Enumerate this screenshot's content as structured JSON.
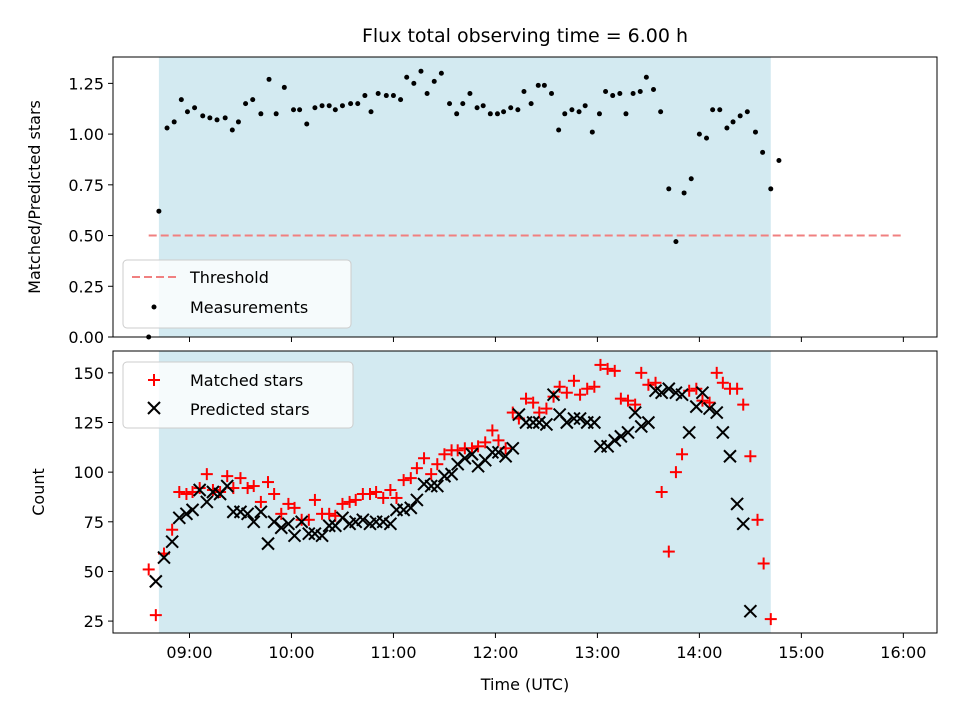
{
  "chart_data": {
    "type": "scatter",
    "title": "Flux total observing time = 6.00 h",
    "xlabel": "Time (UTC)",
    "x_tick_labels": [
      "09:00",
      "10:00",
      "11:00",
      "12:00",
      "13:00",
      "14:00",
      "15:00",
      "16:00"
    ],
    "x_ticks_hours": [
      9,
      10,
      11,
      12,
      13,
      14,
      15,
      16
    ],
    "xlim_hours": [
      8.25,
      16.33
    ],
    "observing_window_hours": [
      8.7,
      14.7
    ],
    "colors": {
      "window": "#d3eaf1",
      "threshold": "#f08080",
      "measurements": "#000000",
      "matched": "#ff0000",
      "predicted": "#000000"
    },
    "top_panel": {
      "ylabel": "Matched/Predicted stars",
      "ylim": [
        0,
        1.38
      ],
      "y_ticks": [
        0.0,
        0.25,
        0.5,
        0.75,
        1.0,
        1.25
      ],
      "y_tick_labels": [
        "0.00",
        "0.25",
        "0.50",
        "0.75",
        "1.00",
        "1.25"
      ],
      "legend": {
        "position": "lower-left",
        "entries": [
          "Threshold",
          "Measurements"
        ]
      },
      "threshold": {
        "name": "Threshold",
        "value": 0.5,
        "x_range": [
          8.6,
          16.0
        ]
      },
      "measurements": {
        "name": "Measurements",
        "points": [
          [
            8.6,
            0.0
          ],
          [
            8.7,
            0.62
          ],
          [
            8.78,
            1.03
          ],
          [
            8.85,
            1.06
          ],
          [
            8.92,
            1.17
          ],
          [
            8.98,
            1.11
          ],
          [
            9.05,
            1.13
          ],
          [
            9.13,
            1.09
          ],
          [
            9.2,
            1.08
          ],
          [
            9.27,
            1.07
          ],
          [
            9.35,
            1.08
          ],
          [
            9.42,
            1.02
          ],
          [
            9.48,
            1.06
          ],
          [
            9.55,
            1.15
          ],
          [
            9.62,
            1.17
          ],
          [
            9.7,
            1.1
          ],
          [
            9.78,
            1.27
          ],
          [
            9.85,
            1.1
          ],
          [
            9.93,
            1.23
          ],
          [
            10.02,
            1.12
          ],
          [
            10.08,
            1.12
          ],
          [
            10.15,
            1.05
          ],
          [
            10.23,
            1.13
          ],
          [
            10.3,
            1.14
          ],
          [
            10.37,
            1.14
          ],
          [
            10.43,
            1.12
          ],
          [
            10.5,
            1.14
          ],
          [
            10.58,
            1.15
          ],
          [
            10.65,
            1.15
          ],
          [
            10.72,
            1.19
          ],
          [
            10.78,
            1.11
          ],
          [
            10.85,
            1.2
          ],
          [
            10.93,
            1.19
          ],
          [
            11.0,
            1.19
          ],
          [
            11.07,
            1.17
          ],
          [
            11.13,
            1.28
          ],
          [
            11.2,
            1.25
          ],
          [
            11.27,
            1.31
          ],
          [
            11.33,
            1.2
          ],
          [
            11.4,
            1.26
          ],
          [
            11.47,
            1.3
          ],
          [
            11.55,
            1.15
          ],
          [
            11.62,
            1.1
          ],
          [
            11.68,
            1.15
          ],
          [
            11.75,
            1.2
          ],
          [
            11.82,
            1.13
          ],
          [
            11.88,
            1.14
          ],
          [
            11.95,
            1.1
          ],
          [
            12.02,
            1.1
          ],
          [
            12.08,
            1.11
          ],
          [
            12.15,
            1.13
          ],
          [
            12.22,
            1.12
          ],
          [
            12.28,
            1.21
          ],
          [
            12.35,
            1.15
          ],
          [
            12.42,
            1.24
          ],
          [
            12.48,
            1.24
          ],
          [
            12.55,
            1.2
          ],
          [
            12.62,
            1.02
          ],
          [
            12.68,
            1.1
          ],
          [
            12.75,
            1.12
          ],
          [
            12.82,
            1.11
          ],
          [
            12.88,
            1.14
          ],
          [
            12.95,
            1.01
          ],
          [
            13.02,
            1.1
          ],
          [
            13.08,
            1.21
          ],
          [
            13.15,
            1.19
          ],
          [
            13.22,
            1.2
          ],
          [
            13.28,
            1.1
          ],
          [
            13.35,
            1.2
          ],
          [
            13.42,
            1.21
          ],
          [
            13.48,
            1.28
          ],
          [
            13.55,
            1.22
          ],
          [
            13.62,
            1.11
          ],
          [
            13.7,
            0.73
          ],
          [
            13.77,
            0.47
          ],
          [
            13.85,
            0.71
          ],
          [
            13.92,
            0.78
          ],
          [
            14.0,
            1.0
          ],
          [
            14.07,
            0.98
          ],
          [
            14.13,
            1.12
          ],
          [
            14.2,
            1.12
          ],
          [
            14.27,
            1.03
          ],
          [
            14.33,
            1.06
          ],
          [
            14.4,
            1.09
          ],
          [
            14.47,
            1.11
          ],
          [
            14.55,
            1.01
          ],
          [
            14.62,
            0.91
          ],
          [
            14.7,
            0.73
          ],
          [
            14.78,
            0.87
          ]
        ]
      }
    },
    "bottom_panel": {
      "ylabel": "Count",
      "ylim": [
        19,
        161
      ],
      "y_ticks": [
        25,
        50,
        75,
        100,
        125,
        150
      ],
      "y_tick_labels": [
        "25",
        "50",
        "75",
        "100",
        "125",
        "150"
      ],
      "legend": {
        "position": "upper-left",
        "entries": [
          "Matched stars",
          "Predicted stars"
        ]
      },
      "matched": {
        "name": "Matched stars",
        "points": [
          [
            8.6,
            51
          ],
          [
            8.67,
            28
          ],
          [
            8.75,
            59
          ],
          [
            8.83,
            71
          ],
          [
            8.9,
            90
          ],
          [
            8.97,
            89
          ],
          [
            9.03,
            90
          ],
          [
            9.1,
            92
          ],
          [
            9.17,
            99
          ],
          [
            9.23,
            91
          ],
          [
            9.3,
            90
          ],
          [
            9.37,
            98
          ],
          [
            9.43,
            92
          ],
          [
            9.5,
            97
          ],
          [
            9.57,
            92
          ],
          [
            9.63,
            93
          ],
          [
            9.7,
            85
          ],
          [
            9.77,
            95
          ],
          [
            9.83,
            89
          ],
          [
            9.9,
            79
          ],
          [
            9.97,
            84
          ],
          [
            10.03,
            82
          ],
          [
            10.1,
            76
          ],
          [
            10.17,
            76
          ],
          [
            10.23,
            86
          ],
          [
            10.3,
            79
          ],
          [
            10.37,
            79
          ],
          [
            10.43,
            78
          ],
          [
            10.5,
            84
          ],
          [
            10.57,
            85
          ],
          [
            10.63,
            86
          ],
          [
            10.7,
            89
          ],
          [
            10.77,
            89
          ],
          [
            10.83,
            90
          ],
          [
            10.9,
            87
          ],
          [
            10.97,
            91
          ],
          [
            11.03,
            87
          ],
          [
            11.1,
            96
          ],
          [
            11.17,
            97
          ],
          [
            11.23,
            102
          ],
          [
            11.3,
            107
          ],
          [
            11.37,
            99
          ],
          [
            11.43,
            104
          ],
          [
            11.5,
            109
          ],
          [
            11.57,
            111
          ],
          [
            11.63,
            111
          ],
          [
            11.7,
            112
          ],
          [
            11.77,
            112
          ],
          [
            11.83,
            113
          ],
          [
            11.9,
            115
          ],
          [
            11.97,
            121
          ],
          [
            12.03,
            116
          ],
          [
            12.1,
            112
          ],
          [
            12.17,
            130
          ],
          [
            12.23,
            127
          ],
          [
            12.3,
            137
          ],
          [
            12.37,
            135
          ],
          [
            12.43,
            130
          ],
          [
            12.5,
            132
          ],
          [
            12.57,
            138
          ],
          [
            12.63,
            143
          ],
          [
            12.7,
            140
          ],
          [
            12.77,
            146
          ],
          [
            12.83,
            139
          ],
          [
            12.9,
            142
          ],
          [
            12.97,
            143
          ],
          [
            13.03,
            154
          ],
          [
            13.1,
            152
          ],
          [
            13.17,
            151
          ],
          [
            13.23,
            137
          ],
          [
            13.3,
            136
          ],
          [
            13.37,
            134
          ],
          [
            13.43,
            150
          ],
          [
            13.5,
            144
          ],
          [
            13.57,
            145
          ],
          [
            13.63,
            90
          ],
          [
            13.7,
            60
          ],
          [
            13.77,
            100
          ],
          [
            13.83,
            109
          ],
          [
            13.9,
            141
          ],
          [
            13.97,
            142
          ],
          [
            14.03,
            136
          ],
          [
            14.1,
            135
          ],
          [
            14.17,
            150
          ],
          [
            14.23,
            145
          ],
          [
            14.3,
            142
          ],
          [
            14.37,
            142
          ],
          [
            14.43,
            134
          ],
          [
            14.5,
            108
          ],
          [
            14.57,
            76
          ],
          [
            14.63,
            54
          ],
          [
            14.7,
            26
          ]
        ]
      },
      "predicted": {
        "name": "Predicted stars",
        "points": [
          [
            8.67,
            45
          ],
          [
            8.75,
            57
          ],
          [
            8.83,
            65
          ],
          [
            8.9,
            77
          ],
          [
            8.97,
            79
          ],
          [
            9.03,
            81
          ],
          [
            9.1,
            91
          ],
          [
            9.17,
            85
          ],
          [
            9.23,
            90
          ],
          [
            9.3,
            89
          ],
          [
            9.37,
            93
          ],
          [
            9.43,
            80
          ],
          [
            9.5,
            80
          ],
          [
            9.57,
            79
          ],
          [
            9.63,
            75
          ],
          [
            9.7,
            80
          ],
          [
            9.77,
            64
          ],
          [
            9.83,
            75
          ],
          [
            9.9,
            72
          ],
          [
            9.97,
            74
          ],
          [
            10.03,
            68
          ],
          [
            10.1,
            75
          ],
          [
            10.17,
            69
          ],
          [
            10.23,
            69
          ],
          [
            10.3,
            68
          ],
          [
            10.37,
            73
          ],
          [
            10.43,
            73
          ],
          [
            10.5,
            77
          ],
          [
            10.57,
            74
          ],
          [
            10.63,
            75
          ],
          [
            10.7,
            76
          ],
          [
            10.77,
            74
          ],
          [
            10.83,
            75
          ],
          [
            10.9,
            75
          ],
          [
            10.97,
            74
          ],
          [
            11.03,
            81
          ],
          [
            11.1,
            81
          ],
          [
            11.17,
            82
          ],
          [
            11.23,
            86
          ],
          [
            11.3,
            94
          ],
          [
            11.37,
            93
          ],
          [
            11.43,
            93
          ],
          [
            11.5,
            98
          ],
          [
            11.57,
            99
          ],
          [
            11.63,
            104
          ],
          [
            11.7,
            107
          ],
          [
            11.77,
            109
          ],
          [
            11.83,
            103
          ],
          [
            11.9,
            106
          ],
          [
            11.97,
            110
          ],
          [
            12.03,
            110
          ],
          [
            12.1,
            108
          ],
          [
            12.17,
            112
          ],
          [
            12.23,
            129
          ],
          [
            12.3,
            125
          ],
          [
            12.37,
            125
          ],
          [
            12.43,
            125
          ],
          [
            12.5,
            124
          ],
          [
            12.57,
            139
          ],
          [
            12.63,
            129
          ],
          [
            12.7,
            125
          ],
          [
            12.77,
            127
          ],
          [
            12.83,
            127
          ],
          [
            12.9,
            125
          ],
          [
            12.97,
            125
          ],
          [
            13.03,
            113
          ],
          [
            13.1,
            113
          ],
          [
            13.17,
            116
          ],
          [
            13.23,
            118
          ],
          [
            13.3,
            120
          ],
          [
            13.37,
            130
          ],
          [
            13.43,
            123
          ],
          [
            13.5,
            125
          ],
          [
            13.57,
            141
          ],
          [
            13.63,
            140
          ],
          [
            13.7,
            142
          ],
          [
            13.77,
            140
          ],
          [
            13.83,
            139
          ],
          [
            13.9,
            120
          ],
          [
            13.97,
            133
          ],
          [
            14.03,
            140
          ],
          [
            14.1,
            132
          ],
          [
            14.17,
            130
          ],
          [
            14.23,
            120
          ],
          [
            14.3,
            108
          ],
          [
            14.37,
            84
          ],
          [
            14.43,
            74
          ],
          [
            14.5,
            30
          ]
        ]
      }
    }
  }
}
